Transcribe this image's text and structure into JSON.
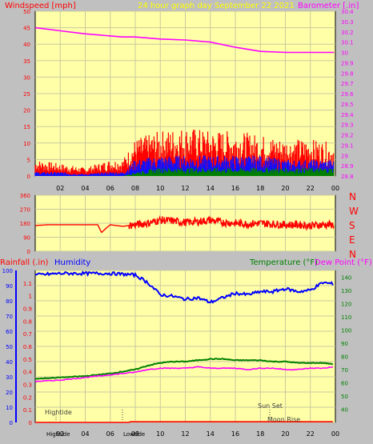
{
  "colors": {
    "background": "#c0c0c0",
    "plot_bg": "#ffffa8",
    "grid": "#c9c9a0",
    "wind": "#ff0000",
    "wind_mid": "#1010ff",
    "wind_low": "#008000",
    "barometer": "#ff00ff",
    "direction": "#ff0000",
    "rainfall": "#ff0000",
    "humidity": "#0000ff",
    "temperature": "#008000",
    "dewpoint": "#ff00ff",
    "title": "#ffff00",
    "text": "#000000",
    "events": "#404040"
  },
  "header": {
    "windspeed_label": "Windspeed [mph]",
    "title": "24 hour graph day   September 22 2021",
    "barometer_label": "Barometer [.in]"
  },
  "middle": {
    "compass": [
      "N",
      "W",
      "S",
      "E",
      "N"
    ]
  },
  "lower_header": {
    "rainfall_label": "Rainfall (.in)",
    "humidity_label": "Humidity",
    "temperature_label": "Temperature (°F)",
    "dewpoint_label": "Dew Point (°F)"
  },
  "events": {
    "hightide_top": "Hightide",
    "sunset": "Sun Set",
    "moonrise": "Moon Rise",
    "hightide_bottom": "Hightide",
    "lowtide": "Lowtide"
  },
  "chart_data": [
    {
      "type": "line",
      "name": "wind-barometer",
      "x_tick_labels": [
        "02",
        "04",
        "06",
        "08",
        "10",
        "12",
        "14",
        "16",
        "18",
        "20",
        "22",
        "00"
      ],
      "left_axis": {
        "ticks": [
          "0",
          "5",
          "10",
          "15",
          "20",
          "25",
          "30",
          "35",
          "40",
          "45",
          "50"
        ],
        "range": [
          0,
          50
        ]
      },
      "right_axis": {
        "ticks": [
          "28.8",
          "28.9",
          "29",
          "29.1",
          "29.2",
          "29.3",
          "29.4",
          "29.5",
          "29.6",
          "29.7",
          "29.8",
          "29.9",
          "30",
          "30.1",
          "30.2",
          "30.3",
          "30.4"
        ],
        "range": [
          28.8,
          30.4
        ]
      },
      "series": [
        {
          "name": "Barometer",
          "axis": "right",
          "x": [
            0,
            2,
            4,
            6,
            7,
            8,
            10,
            12,
            14,
            16,
            18,
            20,
            22,
            23.9
          ],
          "y": [
            30.24,
            30.21,
            30.18,
            30.16,
            30.15,
            30.15,
            30.13,
            30.12,
            30.1,
            30.05,
            30.01,
            30.0,
            30.0,
            30.0
          ]
        },
        {
          "name": "Wind gust",
          "axis": "left",
          "band": true,
          "x": [
            0,
            2,
            4,
            6,
            7,
            8,
            10,
            12,
            14,
            16,
            18,
            20,
            22,
            23.9
          ],
          "y": [
            4,
            3,
            2,
            4,
            4,
            9,
            11,
            12,
            11,
            11,
            10,
            9,
            9,
            8
          ]
        },
        {
          "name": "Wind average",
          "axis": "left",
          "band": true,
          "x": [
            0,
            2,
            4,
            6,
            7,
            8,
            10,
            12,
            14,
            16,
            18,
            20,
            22,
            23.9
          ],
          "y": [
            1,
            1,
            0.5,
            1,
            1,
            4,
            5,
            5,
            5,
            5,
            5,
            4,
            4,
            4
          ]
        },
        {
          "name": "Wind low",
          "axis": "left",
          "band": true,
          "x": [
            0,
            2,
            4,
            6,
            7,
            8,
            10,
            12,
            14,
            16,
            18,
            20,
            22,
            23.9
          ],
          "y": [
            0,
            0,
            0,
            0,
            0,
            1,
            2,
            2,
            2,
            2,
            2,
            2,
            2,
            2
          ]
        }
      ]
    },
    {
      "type": "line",
      "name": "wind-direction",
      "left_axis": {
        "ticks": [
          "0",
          "90",
          "180",
          "270",
          "360"
        ],
        "range": [
          0,
          360
        ]
      },
      "series": [
        {
          "name": "Direction",
          "x": [
            0,
            1,
            2,
            3,
            4,
            5,
            5.3,
            5.7,
            6,
            7,
            8,
            9,
            10,
            11,
            12,
            13,
            14,
            15,
            16,
            17,
            18,
            19,
            20,
            21,
            22,
            23,
            23.9
          ],
          "y": [
            165,
            170,
            170,
            170,
            170,
            170,
            120,
            150,
            170,
            160,
            170,
            180,
            200,
            195,
            185,
            190,
            200,
            185,
            180,
            175,
            180,
            175,
            170,
            170,
            165,
            170,
            170
          ]
        }
      ]
    },
    {
      "type": "line",
      "name": "temperature-humidity",
      "rain_axis": {
        "ticks": [
          "0",
          "0.1",
          "0.2",
          "0.3",
          "0.4",
          "0.5",
          "0.6",
          "0.7",
          "0.8",
          "0.9",
          "1",
          "1.1"
        ],
        "range": [
          0,
          1.2
        ]
      },
      "humidity_axis": {
        "ticks": [
          "0",
          "10",
          "20",
          "30",
          "40",
          "50",
          "60",
          "70",
          "80",
          "90",
          "100"
        ],
        "range": [
          0,
          100
        ]
      },
      "temp_axis": {
        "ticks": [
          "40",
          "50",
          "60",
          "70",
          "80",
          "90",
          "100",
          "110",
          "120",
          "130",
          "140"
        ],
        "range": [
          30,
          145
        ]
      },
      "series": [
        {
          "name": "Humidity",
          "axis": "humidity",
          "x": [
            0,
            2,
            4,
            6,
            8,
            9,
            10,
            11,
            12,
            13,
            14,
            15,
            16,
            17,
            18,
            19,
            20,
            21,
            22,
            23,
            23.9
          ],
          "y": [
            97,
            98,
            98,
            98,
            97,
            92,
            84,
            83,
            81,
            82,
            79,
            82,
            85,
            84,
            86,
            86,
            88,
            86,
            87,
            92,
            91
          ]
        },
        {
          "name": "Temperature",
          "axis": "temp",
          "x": [
            0,
            2,
            4,
            6,
            8,
            9,
            10,
            11,
            12,
            13,
            14,
            15,
            16,
            17,
            18,
            19,
            20,
            21,
            22,
            23,
            23.9
          ],
          "y": [
            63,
            64,
            65,
            67,
            70,
            73,
            75,
            76,
            76,
            77,
            78,
            78,
            77,
            77,
            77,
            76,
            76,
            75,
            75,
            75,
            74
          ]
        },
        {
          "name": "Dew Point",
          "axis": "temp",
          "x": [
            0,
            2,
            4,
            6,
            8,
            9,
            10,
            11,
            12,
            13,
            14,
            15,
            16,
            17,
            18,
            19,
            20,
            21,
            22,
            23,
            23.9
          ],
          "y": [
            61,
            62,
            64,
            66,
            68,
            70,
            71,
            71,
            71,
            72,
            71,
            71,
            71,
            70,
            71,
            71,
            70,
            70,
            71,
            71,
            72
          ]
        },
        {
          "name": "Rainfall",
          "axis": "rain",
          "x": [
            0,
            7.5,
            7.6,
            23.9
          ],
          "y": [
            0,
            0,
            0.005,
            0.005
          ]
        }
      ]
    }
  ]
}
